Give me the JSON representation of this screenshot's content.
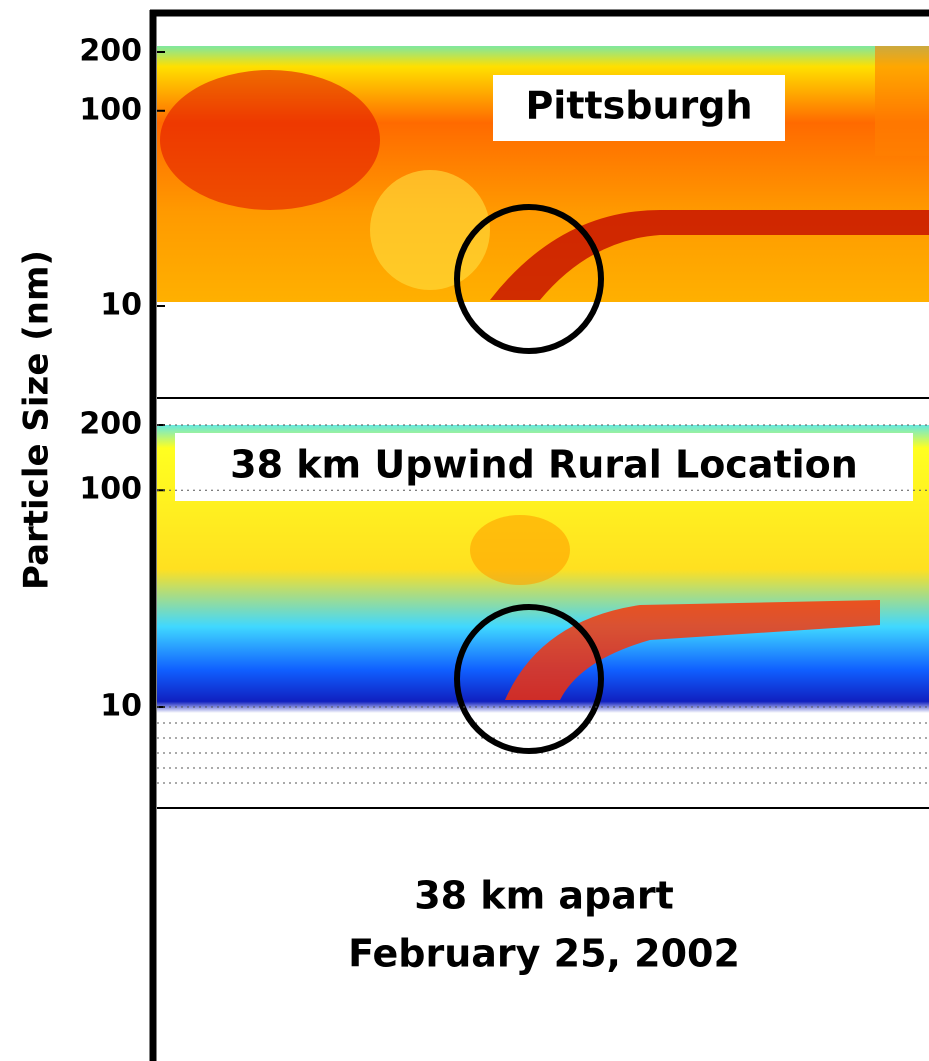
{
  "figure": {
    "ylabel": "Particle Size (nm)",
    "caption": [
      "38 km apart",
      "February 25, 2002"
    ]
  },
  "chart_data": [
    {
      "type": "heatmap",
      "title": "Pittsburgh",
      "ylim": [
        10,
        200
      ],
      "yticks": [
        10,
        100,
        200
      ],
      "log_scale": true
    },
    {
      "type": "heatmap",
      "title": "38 km Upwind Rural Location",
      "ylim": [
        10,
        200
      ],
      "yticks": [
        10,
        100,
        200
      ],
      "log_scale": true,
      "grid": true
    }
  ]
}
